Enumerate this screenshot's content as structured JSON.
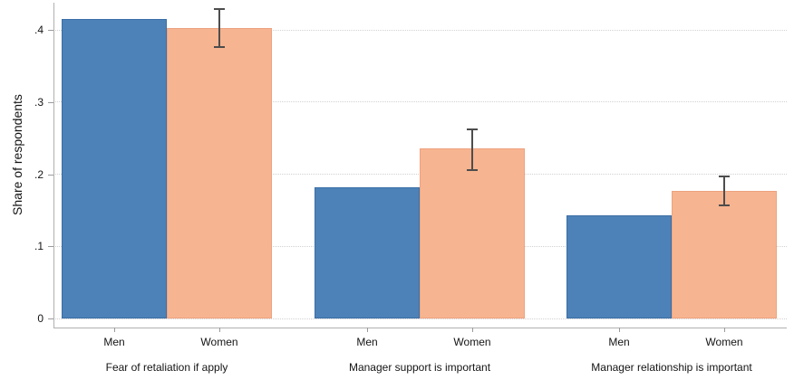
{
  "chart_data": {
    "type": "bar",
    "title": "",
    "ylabel": "Share of respondents",
    "xlabel": "",
    "ylim": [
      0,
      0.435
    ],
    "yticks": [
      "0",
      ".1",
      ".2",
      ".3",
      ".4"
    ],
    "ytick_values": [
      0,
      0.1,
      0.2,
      0.3,
      0.4
    ],
    "grid": "horizontal-dotted",
    "legend": "none",
    "categories": [
      "Fear of retaliation if apply",
      "Manager support is important",
      "Manager relationship is important"
    ],
    "bar_labels": [
      "Men",
      "Women"
    ],
    "series": [
      {
        "name": "Men",
        "color": "#4d82b8",
        "edge_color": "#3a6ea5",
        "values": [
          0.415,
          0.182,
          0.143
        ]
      },
      {
        "name": "Women",
        "color": "#f7b490",
        "edge_color": "#eda27f",
        "values": [
          0.403,
          0.236,
          0.177
        ],
        "ci_low": [
          0.376,
          0.206,
          0.157
        ],
        "ci_high": [
          0.429,
          0.262,
          0.197
        ]
      }
    ]
  },
  "style": {
    "grid_color": "#d2d2d2",
    "axis_color": "#b0b0b0",
    "error_bar_color": "#4d4d4d",
    "text_color": "#141414",
    "background": "#ffffff"
  }
}
